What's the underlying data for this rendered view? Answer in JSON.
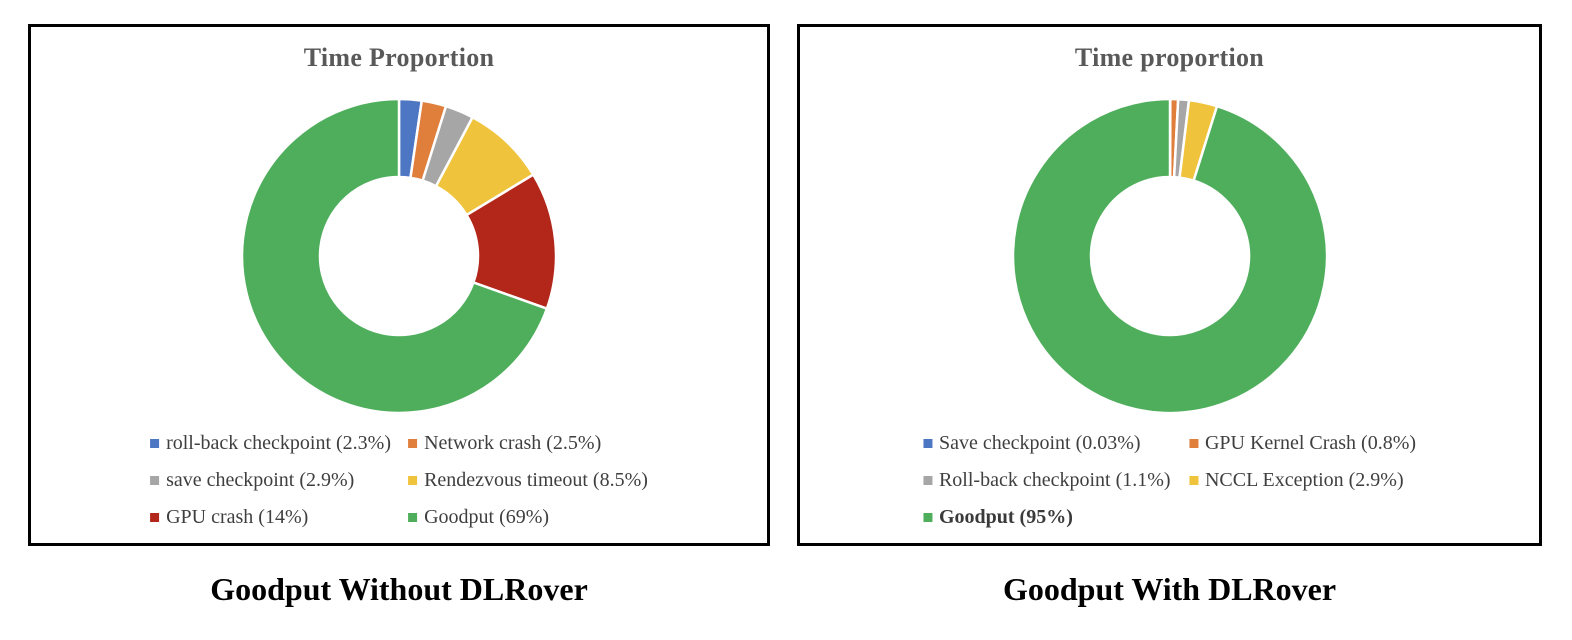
{
  "colors": {
    "background": "#ffffff",
    "panel_border": "#000000",
    "title_text": "#595959",
    "legend_text": "#3f3f3f",
    "caption_text": "#000000",
    "slice_separator": "#ffffff"
  },
  "chart_data": [
    {
      "type": "pie",
      "subtype": "donut",
      "title": "Time Proportion",
      "caption": "Goodput Without DLRover",
      "legend_position": "bottom",
      "labels": [
        "roll-back checkpoint",
        "Network crash",
        "save checkpoint",
        "Rendezvous timeout",
        "GPU crash",
        "Goodput"
      ],
      "values": [
        2.3,
        2.5,
        2.9,
        8.5,
        14,
        69
      ],
      "legend_labels": [
        "roll-back checkpoint (2.3%)",
        "Network crash (2.5%)",
        "save checkpoint (2.9%)",
        "Rendezvous timeout (8.5%)",
        "GPU crash (14%)",
        "Goodput (69%)"
      ],
      "slice_colors": [
        "#4d77c3",
        "#e07e3b",
        "#a6a6a6",
        "#f0c33c",
        "#b2271a",
        "#4fae5c"
      ],
      "bold_legend_indexes": [],
      "start_angle_deg": 0,
      "direction": "clockwise",
      "hole_ratio": 0.5
    },
    {
      "type": "pie",
      "subtype": "donut",
      "title": "Time proportion",
      "caption": "Goodput With DLRover",
      "legend_position": "bottom",
      "labels": [
        "Save checkpoint",
        "GPU Kernel Crash",
        "Roll-back checkpoint",
        "NCCL Exception",
        "Goodput"
      ],
      "values": [
        0.03,
        0.8,
        1.1,
        2.9,
        95
      ],
      "legend_labels": [
        "Save checkpoint (0.03%)",
        "GPU Kernel Crash (0.8%)",
        "Roll-back checkpoint (1.1%)",
        "NCCL Exception (2.9%)",
        "Goodput (95%)"
      ],
      "slice_colors": [
        "#4d77c3",
        "#e07e3b",
        "#a6a6a6",
        "#f0c33c",
        "#4fae5c"
      ],
      "bold_legend_indexes": [
        4
      ],
      "start_angle_deg": 0,
      "direction": "clockwise",
      "hole_ratio": 0.5
    }
  ]
}
